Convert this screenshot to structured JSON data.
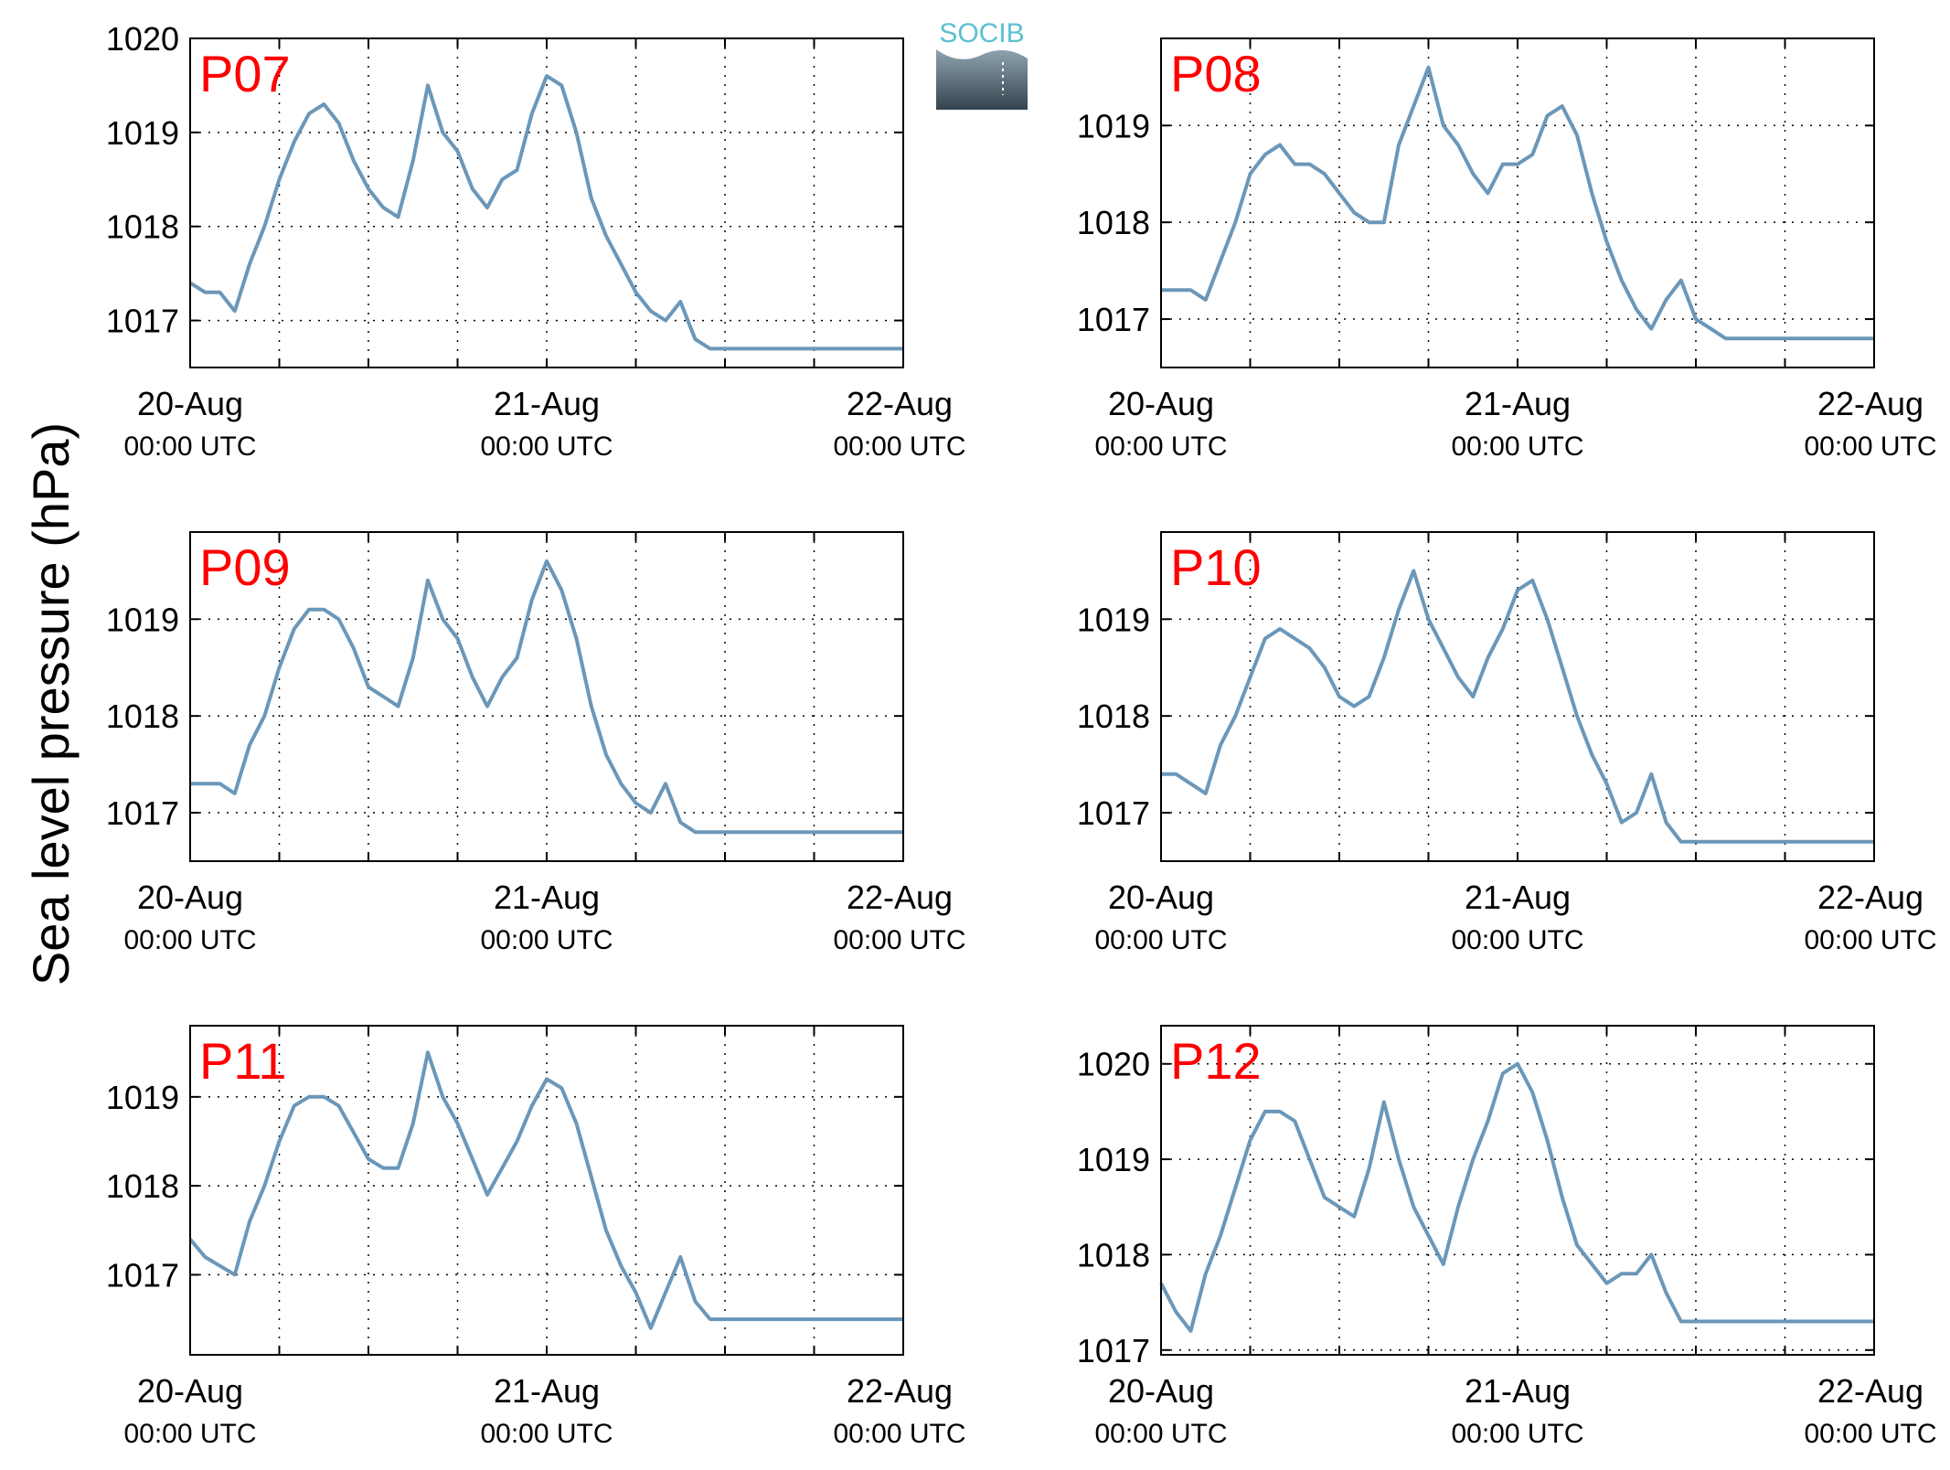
{
  "ylabel": "Sea level pressure (hPa)",
  "logo": {
    "text": "SOCIB",
    "colors": [
      "#5BC0D0",
      "#3A4A55"
    ]
  },
  "xticks": [
    {
      "day": "20-Aug",
      "time": "00:00 UTC",
      "t": 0
    },
    {
      "day": "21-Aug",
      "time": "00:00 UTC",
      "t": 24
    },
    {
      "day": "22-Aug",
      "time": "00:00 UTC",
      "t": 48
    }
  ],
  "colors": {
    "line": "#6B97B9",
    "station_label": "#FF0000",
    "axes": "#000000",
    "grid": "#000000"
  },
  "chart_data": [
    {
      "type": "line",
      "title": "P07",
      "xlabel": "",
      "ylabel": "Sea level pressure (hPa)",
      "xlim": [
        0,
        48
      ],
      "ylim": [
        1016.5,
        1020
      ],
      "yticks": [
        1017,
        1018,
        1019,
        1020
      ],
      "grid": true,
      "x": [
        0,
        1,
        2,
        3,
        4,
        5,
        6,
        7,
        8,
        9,
        10,
        11,
        12,
        13,
        14,
        15,
        16,
        17,
        18,
        19,
        20,
        21,
        22,
        23,
        24,
        25,
        26,
        27,
        28,
        29,
        30,
        31,
        32,
        33,
        34,
        35,
        36,
        37,
        38,
        39,
        40,
        41,
        42,
        43,
        44,
        45,
        46,
        47,
        48
      ],
      "values": [
        1017.4,
        1017.3,
        1017.3,
        1017.1,
        1017.6,
        1018.0,
        1018.5,
        1018.9,
        1019.2,
        1019.3,
        1019.1,
        1018.7,
        1018.4,
        1018.2,
        1018.1,
        1018.7,
        1019.5,
        1019.0,
        1018.8,
        1018.4,
        1018.2,
        1018.5,
        1018.6,
        1019.2,
        1019.6,
        1019.5,
        1019.0,
        1018.3,
        1017.9,
        1017.6,
        1017.3,
        1017.1,
        1017.0,
        1017.2,
        1016.8,
        1016.7,
        1016.7,
        1016.7,
        1016.7,
        1016.7,
        1016.7,
        1016.7,
        1016.7,
        1016.7,
        1016.7,
        1016.7,
        1016.7,
        1016.7,
        1016.7
      ]
    },
    {
      "type": "line",
      "title": "P08",
      "xlabel": "",
      "ylabel": "Sea level pressure (hPa)",
      "xlim": [
        0,
        48
      ],
      "ylim": [
        1016.5,
        1019.9
      ],
      "yticks": [
        1017,
        1018,
        1019
      ],
      "grid": true,
      "x": [
        0,
        1,
        2,
        3,
        4,
        5,
        6,
        7,
        8,
        9,
        10,
        11,
        12,
        13,
        14,
        15,
        16,
        17,
        18,
        19,
        20,
        21,
        22,
        23,
        24,
        25,
        26,
        27,
        28,
        29,
        30,
        31,
        32,
        33,
        34,
        35,
        36,
        37,
        38,
        39,
        40,
        41,
        42,
        43,
        44,
        45,
        46,
        47,
        48
      ],
      "values": [
        1017.3,
        1017.3,
        1017.3,
        1017.2,
        1017.6,
        1018.0,
        1018.5,
        1018.7,
        1018.8,
        1018.6,
        1018.6,
        1018.5,
        1018.3,
        1018.1,
        1018.0,
        1018.0,
        1018.8,
        1019.2,
        1019.6,
        1019.0,
        1018.8,
        1018.5,
        1018.3,
        1018.6,
        1018.6,
        1018.7,
        1019.1,
        1019.2,
        1018.9,
        1018.3,
        1017.8,
        1017.4,
        1017.1,
        1016.9,
        1017.2,
        1017.4,
        1017.0,
        1016.9,
        1016.8,
        1016.8,
        1016.8,
        1016.8,
        1016.8,
        1016.8,
        1016.8,
        1016.8,
        1016.8,
        1016.8,
        1016.8
      ]
    },
    {
      "type": "line",
      "title": "P09",
      "xlabel": "",
      "ylabel": "Sea level pressure (hPa)",
      "xlim": [
        0,
        48
      ],
      "ylim": [
        1016.5,
        1019.9
      ],
      "yticks": [
        1017,
        1018,
        1019
      ],
      "grid": true,
      "x": [
        0,
        1,
        2,
        3,
        4,
        5,
        6,
        7,
        8,
        9,
        10,
        11,
        12,
        13,
        14,
        15,
        16,
        17,
        18,
        19,
        20,
        21,
        22,
        23,
        24,
        25,
        26,
        27,
        28,
        29,
        30,
        31,
        32,
        33,
        34,
        35,
        36,
        37,
        38,
        39,
        40,
        41,
        42,
        43,
        44,
        45,
        46,
        47,
        48
      ],
      "values": [
        1017.3,
        1017.3,
        1017.3,
        1017.2,
        1017.7,
        1018.0,
        1018.5,
        1018.9,
        1019.1,
        1019.1,
        1019.0,
        1018.7,
        1018.3,
        1018.2,
        1018.1,
        1018.6,
        1019.4,
        1019.0,
        1018.8,
        1018.4,
        1018.1,
        1018.4,
        1018.6,
        1019.2,
        1019.6,
        1019.3,
        1018.8,
        1018.1,
        1017.6,
        1017.3,
        1017.1,
        1017.0,
        1017.3,
        1016.9,
        1016.8,
        1016.8,
        1016.8,
        1016.8,
        1016.8,
        1016.8,
        1016.8,
        1016.8,
        1016.8,
        1016.8,
        1016.8,
        1016.8,
        1016.8,
        1016.8,
        1016.8
      ]
    },
    {
      "type": "line",
      "title": "P10",
      "xlabel": "",
      "ylabel": "Sea level pressure (hPa)",
      "xlim": [
        0,
        48
      ],
      "ylim": [
        1016.5,
        1019.9
      ],
      "yticks": [
        1017,
        1018,
        1019
      ],
      "grid": true,
      "x": [
        0,
        1,
        2,
        3,
        4,
        5,
        6,
        7,
        8,
        9,
        10,
        11,
        12,
        13,
        14,
        15,
        16,
        17,
        18,
        19,
        20,
        21,
        22,
        23,
        24,
        25,
        26,
        27,
        28,
        29,
        30,
        31,
        32,
        33,
        34,
        35,
        36,
        37,
        38,
        39,
        40,
        41,
        42,
        43,
        44,
        45,
        46,
        47,
        48
      ],
      "values": [
        1017.4,
        1017.4,
        1017.3,
        1017.2,
        1017.7,
        1018.0,
        1018.4,
        1018.8,
        1018.9,
        1018.8,
        1018.7,
        1018.5,
        1018.2,
        1018.1,
        1018.2,
        1018.6,
        1019.1,
        1019.5,
        1019.0,
        1018.7,
        1018.4,
        1018.2,
        1018.6,
        1018.9,
        1019.3,
        1019.4,
        1019.0,
        1018.5,
        1018.0,
        1017.6,
        1017.3,
        1016.9,
        1017.0,
        1017.4,
        1016.9,
        1016.7,
        1016.7,
        1016.7,
        1016.7,
        1016.7,
        1016.7,
        1016.7,
        1016.7,
        1016.7,
        1016.7,
        1016.7,
        1016.7,
        1016.7,
        1016.7
      ]
    },
    {
      "type": "line",
      "title": "P11",
      "xlabel": "",
      "ylabel": "Sea level pressure (hPa)",
      "xlim": [
        0,
        48
      ],
      "ylim": [
        1016.1,
        1019.8
      ],
      "yticks": [
        1017,
        1018,
        1019
      ],
      "grid": true,
      "x": [
        0,
        1,
        2,
        3,
        4,
        5,
        6,
        7,
        8,
        9,
        10,
        11,
        12,
        13,
        14,
        15,
        16,
        17,
        18,
        19,
        20,
        21,
        22,
        23,
        24,
        25,
        26,
        27,
        28,
        29,
        30,
        31,
        32,
        33,
        34,
        35,
        36,
        37,
        38,
        39,
        40,
        41,
        42,
        43,
        44,
        45,
        46,
        47,
        48
      ],
      "values": [
        1017.4,
        1017.2,
        1017.1,
        1017.0,
        1017.6,
        1018.0,
        1018.5,
        1018.9,
        1019.0,
        1019.0,
        1018.9,
        1018.6,
        1018.3,
        1018.2,
        1018.2,
        1018.7,
        1019.5,
        1019.0,
        1018.7,
        1018.3,
        1017.9,
        1018.2,
        1018.5,
        1018.9,
        1019.2,
        1019.1,
        1018.7,
        1018.1,
        1017.5,
        1017.1,
        1016.8,
        1016.4,
        1016.8,
        1017.2,
        1016.7,
        1016.5,
        1016.5,
        1016.5,
        1016.5,
        1016.5,
        1016.5,
        1016.5,
        1016.5,
        1016.5,
        1016.5,
        1016.5,
        1016.5,
        1016.5,
        1016.5
      ]
    },
    {
      "type": "line",
      "title": "P12",
      "xlabel": "",
      "ylabel": "Sea level pressure (hPa)",
      "xlim": [
        0,
        48
      ],
      "ylim": [
        1016.95,
        1020.4
      ],
      "yticks": [
        1017,
        1018,
        1019,
        1020
      ],
      "grid": true,
      "x": [
        0,
        1,
        2,
        3,
        4,
        5,
        6,
        7,
        8,
        9,
        10,
        11,
        12,
        13,
        14,
        15,
        16,
        17,
        18,
        19,
        20,
        21,
        22,
        23,
        24,
        25,
        26,
        27,
        28,
        29,
        30,
        31,
        32,
        33,
        34,
        35,
        36,
        37,
        38,
        39,
        40,
        41,
        42,
        43,
        44,
        45,
        46,
        47,
        48
      ],
      "values": [
        1017.7,
        1017.4,
        1017.2,
        1017.8,
        1018.2,
        1018.7,
        1019.2,
        1019.5,
        1019.5,
        1019.4,
        1019.0,
        1018.6,
        1018.5,
        1018.4,
        1018.9,
        1019.6,
        1019.0,
        1018.5,
        1018.2,
        1017.9,
        1018.5,
        1019.0,
        1019.4,
        1019.9,
        1020.0,
        1019.7,
        1019.2,
        1018.6,
        1018.1,
        1017.9,
        1017.7,
        1017.8,
        1017.8,
        1018.0,
        1017.6,
        1017.3,
        1017.3,
        1017.3,
        1017.3,
        1017.3,
        1017.3,
        1017.3,
        1017.3,
        1017.3,
        1017.3,
        1017.3,
        1017.3,
        1017.3,
        1017.3
      ]
    }
  ]
}
